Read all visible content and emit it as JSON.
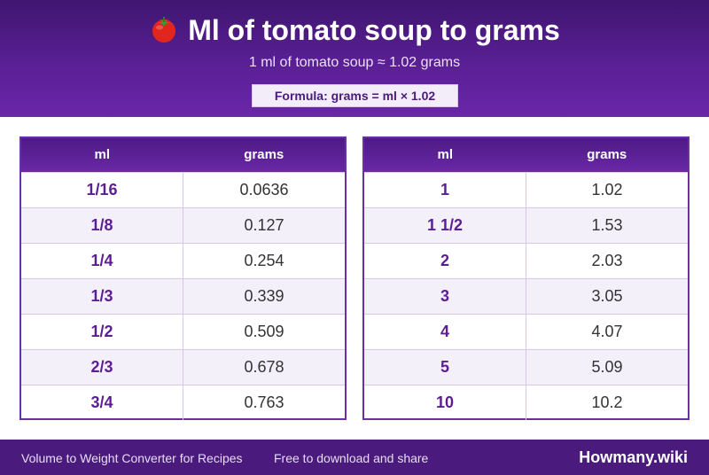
{
  "header": {
    "title": "Ml of tomato soup to grams",
    "icon": "tomato-icon",
    "subtitle": "1 ml of tomato soup ≈ 1.02 grams",
    "formula": "Formula: grams = ml × 1.02"
  },
  "tables": [
    {
      "headers": [
        "ml",
        "grams"
      ],
      "rows": [
        [
          "1/16",
          "0.0636"
        ],
        [
          "1/8",
          "0.127"
        ],
        [
          "1/4",
          "0.254"
        ],
        [
          "1/3",
          "0.339"
        ],
        [
          "1/2",
          "0.509"
        ],
        [
          "2/3",
          "0.678"
        ],
        [
          "3/4",
          "0.763"
        ]
      ]
    },
    {
      "headers": [
        "ml",
        "grams"
      ],
      "rows": [
        [
          "1",
          "1.02"
        ],
        [
          "1 1/2",
          "1.53"
        ],
        [
          "2",
          "2.03"
        ],
        [
          "3",
          "3.05"
        ],
        [
          "4",
          "4.07"
        ],
        [
          "5",
          "5.09"
        ],
        [
          "10",
          "10.2"
        ]
      ]
    }
  ],
  "footer": {
    "left_text": "Volume to Weight Converter for Recipes",
    "middle_text": "Free to download and share",
    "brand": "Howmany.wiki"
  },
  "colors": {
    "header_purple": "#5a1f95",
    "accent_purple": "#6a2fa0",
    "footer_purple": "#4a1a7d",
    "row_alt": "#f4f0fa"
  }
}
